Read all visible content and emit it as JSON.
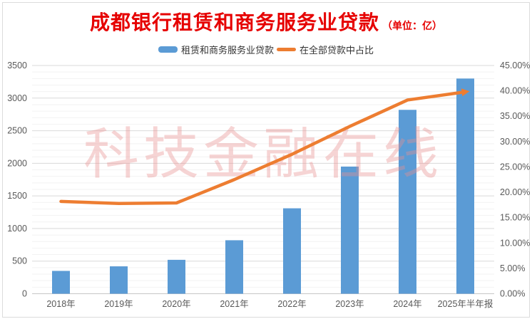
{
  "title": {
    "text": "成都银行租赁和商务服务业贷款",
    "unit": "（单位：亿）"
  },
  "legend": [
    {
      "label": "租赁和商务服务业贷款",
      "marker": "bar-swatch",
      "color": "#5b9bd5"
    },
    {
      "label": "在全部贷款中占比",
      "marker": "line-swatch",
      "color": "#ed7d31"
    }
  ],
  "watermark": {
    "text": "科技金融在线",
    "color": "#e98f8f"
  },
  "colors": {
    "bar": "#5b9bd5",
    "line": "#ed7d31",
    "title_red": "#e60000",
    "axis_text": "#595959",
    "grid_major": "#d9d9d9",
    "grid_minor": "#f2f2f2"
  },
  "chart_data": {
    "type": "bar",
    "title": "成都银行租赁和商务服务业贷款（单位：亿）",
    "categories": [
      "2018年",
      "2019年",
      "2020年",
      "2021年",
      "2022年",
      "2023年",
      "2024年",
      "2025年半年报"
    ],
    "series": [
      {
        "name": "租赁和商务服务业贷款",
        "type": "bar",
        "axis": "left",
        "color": "#5b9bd5",
        "values": [
          350,
          420,
          520,
          820,
          1310,
          1950,
          2820,
          3300
        ]
      },
      {
        "name": "在全部贷款中占比",
        "type": "line",
        "axis": "right",
        "color": "#ed7d31",
        "values": [
          18.2,
          17.8,
          17.9,
          22.5,
          27.5,
          33.0,
          38.2,
          39.8
        ]
      }
    ],
    "left_axis": {
      "min": 0,
      "max": 3500,
      "step": 500,
      "minor_step": 100,
      "tick_labels": [
        "0",
        "500",
        "1000",
        "1500",
        "2000",
        "2500",
        "3000",
        "3500"
      ]
    },
    "right_axis": {
      "min": 0,
      "max": 45,
      "step": 5,
      "tick_labels": [
        "0.00%",
        "5.00%",
        "10.00%",
        "15.00%",
        "20.00%",
        "25.00%",
        "30.00%",
        "35.00%",
        "40.00%",
        "45.00%"
      ]
    },
    "grid": true,
    "legend_position": "top-center"
  }
}
